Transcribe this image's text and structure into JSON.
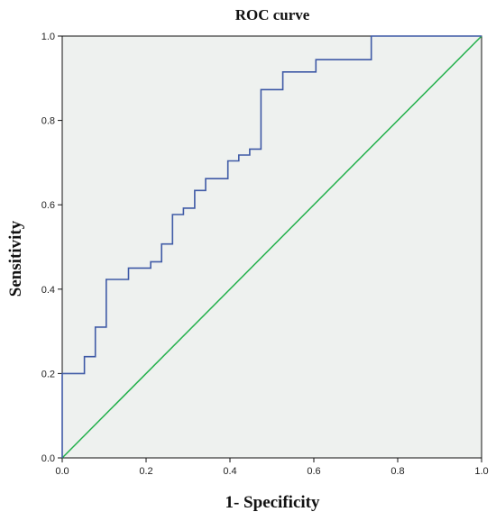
{
  "chart_data": {
    "type": "line",
    "title": "ROC curve",
    "xlabel": "1- Specificity",
    "ylabel": "Sensitivity",
    "xlim": [
      0,
      1
    ],
    "ylim": [
      0,
      1
    ],
    "x_ticks": [
      "0.0",
      "0.2",
      "0.4",
      "0.6",
      "0.8",
      "1.0"
    ],
    "y_ticks": [
      "0.0",
      "0.2",
      "0.4",
      "0.6",
      "0.8",
      "1.0"
    ],
    "grid": false,
    "legend": "none",
    "colors": {
      "plot_background": "#eef1ef",
      "roc_line": "#3f5aa6",
      "reference_line": "#22b04b"
    },
    "series": [
      {
        "kind": "roc-step",
        "points": [
          [
            0.0,
            0.0
          ],
          [
            0.0,
            0.2
          ],
          [
            0.053,
            0.2
          ],
          [
            0.053,
            0.24
          ],
          [
            0.079,
            0.24
          ],
          [
            0.079,
            0.31
          ],
          [
            0.105,
            0.31
          ],
          [
            0.105,
            0.423
          ],
          [
            0.158,
            0.423
          ],
          [
            0.158,
            0.45
          ],
          [
            0.211,
            0.45
          ],
          [
            0.211,
            0.465
          ],
          [
            0.237,
            0.465
          ],
          [
            0.237,
            0.507
          ],
          [
            0.263,
            0.507
          ],
          [
            0.263,
            0.577
          ],
          [
            0.289,
            0.577
          ],
          [
            0.289,
            0.592
          ],
          [
            0.316,
            0.592
          ],
          [
            0.316,
            0.634
          ],
          [
            0.342,
            0.634
          ],
          [
            0.342,
            0.662
          ],
          [
            0.395,
            0.662
          ],
          [
            0.395,
            0.704
          ],
          [
            0.421,
            0.704
          ],
          [
            0.421,
            0.718
          ],
          [
            0.447,
            0.718
          ],
          [
            0.447,
            0.732
          ],
          [
            0.474,
            0.732
          ],
          [
            0.474,
            0.873
          ],
          [
            0.526,
            0.873
          ],
          [
            0.526,
            0.915
          ],
          [
            0.605,
            0.915
          ],
          [
            0.605,
            0.944
          ],
          [
            0.737,
            0.944
          ],
          [
            0.737,
            1.0
          ],
          [
            1.0,
            1.0
          ]
        ]
      },
      {
        "kind": "reference-diagonal",
        "points": [
          [
            0,
            0
          ],
          [
            1,
            1
          ]
        ]
      }
    ]
  }
}
